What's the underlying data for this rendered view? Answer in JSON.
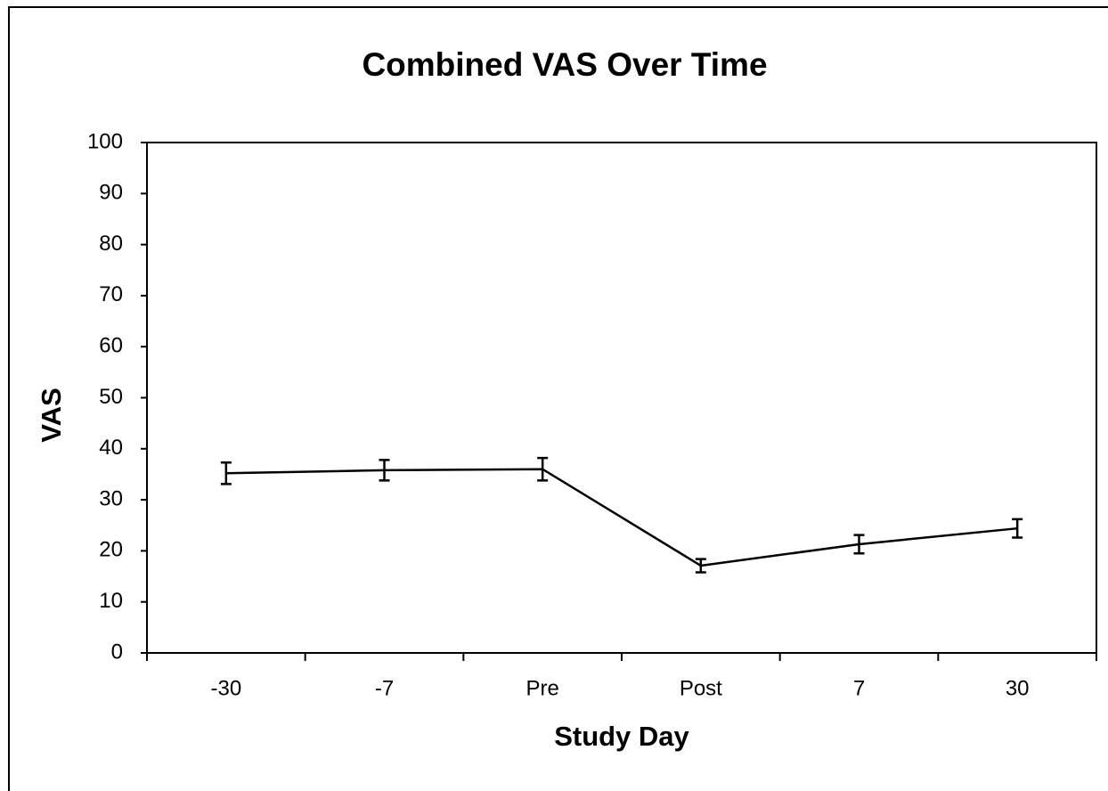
{
  "chart_data": {
    "type": "line",
    "title": "Combined VAS Over Time",
    "x_label": "Study Day",
    "y_label": "VAS",
    "categories": [
      "-30",
      "-7",
      "Pre",
      "Post",
      "7",
      "30"
    ],
    "values": [
      35.2,
      35.8,
      36.0,
      17.1,
      21.3,
      24.4
    ],
    "errors": [
      2.1,
      2.0,
      2.2,
      1.3,
      1.8,
      1.8
    ],
    "color": "#000000",
    "ylim": [
      0,
      100
    ],
    "yticks": [
      0,
      10,
      20,
      30,
      40,
      50,
      60,
      70,
      80,
      90,
      100
    ],
    "grid": false
  }
}
